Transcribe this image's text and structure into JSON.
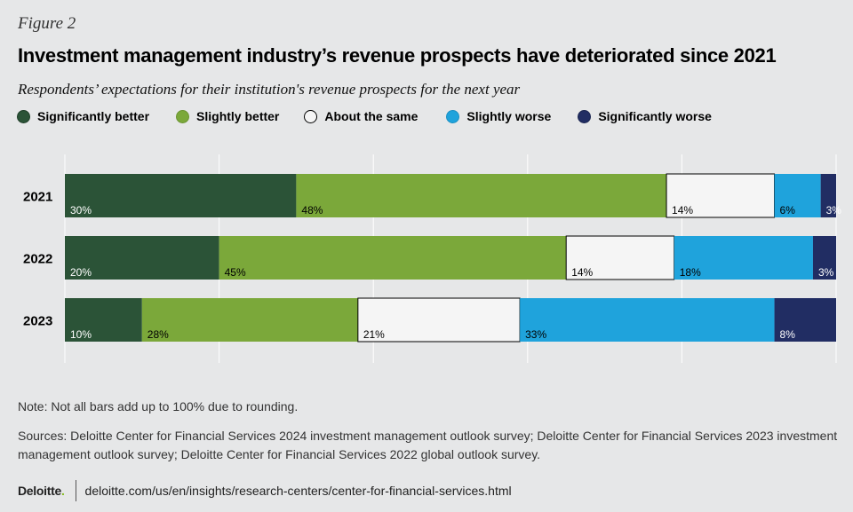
{
  "figure_label": "Figure 2",
  "title": "Investment management industry’s revenue prospects have deteriorated since 2021",
  "subtitle": "Respondents’ expectations for their institution's revenue prospects for the next year",
  "legend": [
    {
      "label": "Significantly better",
      "color": "#2b5337",
      "border": "#1e3d27"
    },
    {
      "label": "Slightly better",
      "color": "#7ba83a",
      "border": "#6a9330"
    },
    {
      "label": "About the same",
      "color": "#f5f5f5",
      "border": "#000000"
    },
    {
      "label": "Slightly worse",
      "color": "#1fa3dc",
      "border": "#1a8fc2"
    },
    {
      "label": "Significantly worse",
      "color": "#212d63",
      "border": "#1a2450"
    }
  ],
  "chart_data": {
    "type": "bar",
    "orientation": "horizontal",
    "stacked": true,
    "categories": [
      "2021",
      "2022",
      "2023"
    ],
    "series": [
      {
        "name": "Significantly better",
        "values": [
          30,
          20,
          10
        ]
      },
      {
        "name": "Slightly better",
        "values": [
          48,
          45,
          28
        ]
      },
      {
        "name": "About the same",
        "values": [
          14,
          14,
          21
        ]
      },
      {
        "name": "Slightly worse",
        "values": [
          6,
          18,
          33
        ]
      },
      {
        "name": "Significantly worse",
        "values": [
          3,
          3,
          8
        ]
      }
    ],
    "value_suffix": "%",
    "xlim": [
      0,
      100
    ],
    "gridlines": [
      0,
      20,
      40,
      60,
      80,
      100
    ],
    "grid": true,
    "legend_position": "top"
  },
  "note": "Note: Not all bars add up to 100% due to rounding.",
  "sources": "Sources: Deloitte Center for Financial Services 2024 investment management outlook survey; Deloitte Center for Financial Services 2023 investment management outlook survey; Deloitte Center for Financial Services 2022 global outlook survey.",
  "footer": {
    "brand": "Deloitte",
    "brand_dot": ".",
    "url": "deloitte.com/us/en/insights/research-centers/center-for-financial-services.html"
  }
}
